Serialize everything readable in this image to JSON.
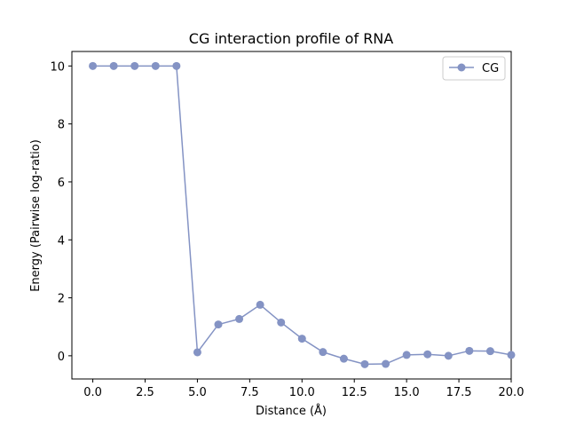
{
  "chart_data": {
    "type": "line",
    "title": "CG interaction profile of  RNA",
    "xlabel": "Distance (Å)",
    "ylabel": "Energy (Pairwise log-ratio)",
    "xlim": [
      -1.0,
      20.0
    ],
    "ylim": [
      -0.8,
      10.5
    ],
    "xticks": [
      "0.0",
      "2.5",
      "5.0",
      "7.5",
      "10.0",
      "12.5",
      "15.0",
      "17.5",
      "20.0"
    ],
    "yticks": [
      "0",
      "2",
      "4",
      "6",
      "8",
      "10"
    ],
    "grid": false,
    "legend_position": "top-right",
    "series": [
      {
        "name": "CG",
        "color": "#8493c4",
        "marker": "circle",
        "x": [
          0,
          1,
          2,
          3,
          4,
          5,
          6,
          7,
          8,
          9,
          10,
          11,
          12,
          13,
          14,
          15,
          16,
          17,
          18,
          19,
          20
        ],
        "y": [
          10.0,
          10.0,
          10.0,
          10.0,
          10.0,
          0.12,
          1.08,
          1.27,
          1.76,
          1.15,
          0.59,
          0.13,
          -0.1,
          -0.29,
          -0.28,
          0.03,
          0.05,
          0.0,
          0.17,
          0.16,
          0.03
        ]
      }
    ]
  }
}
